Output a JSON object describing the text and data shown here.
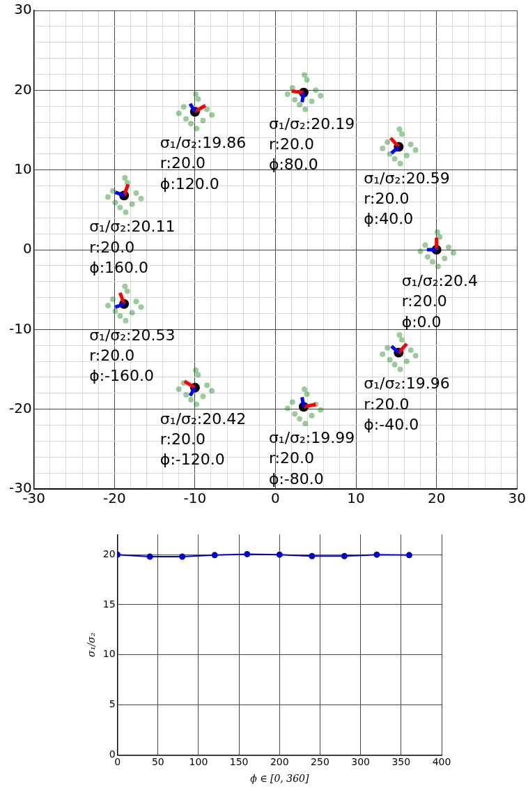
{
  "chart_data": [
    {
      "type": "scatter",
      "xlim": [
        -30,
        30
      ],
      "ylim": [
        -30,
        30
      ],
      "xticks": [
        -30,
        {
          "value": -28,
          "label": null
        },
        {
          "value": -26,
          "label": null
        },
        {
          "value": -24,
          "label": null
        },
        {
          "value": -22,
          "label": null
        },
        -20,
        {
          "value": -18,
          "label": null
        },
        {
          "value": -16,
          "label": null
        },
        {
          "value": -14,
          "label": null
        },
        {
          "value": -12,
          "label": null
        },
        -10,
        {
          "value": -8,
          "label": null
        },
        {
          "value": -6,
          "label": null
        },
        {
          "value": -4,
          "label": null
        },
        {
          "value": -2,
          "label": null
        },
        0,
        {
          "value": 2,
          "label": null
        },
        {
          "value": 4,
          "label": null
        },
        {
          "value": 6,
          "label": null
        },
        {
          "value": 8,
          "label": null
        },
        10,
        {
          "value": 12,
          "label": null
        },
        {
          "value": 14,
          "label": null
        },
        {
          "value": 16,
          "label": null
        },
        {
          "value": 18,
          "label": null
        },
        20,
        {
          "value": 22,
          "label": null
        },
        {
          "value": 24,
          "label": null
        },
        {
          "value": 26,
          "label": null
        },
        {
          "value": 28,
          "label": null
        },
        30
      ],
      "yticks": [
        -30,
        {
          "value": -28,
          "label": null
        },
        {
          "value": -26,
          "label": null
        },
        {
          "value": -24,
          "label": null
        },
        {
          "value": -22,
          "label": null
        },
        -20,
        {
          "value": -18,
          "label": null
        },
        {
          "value": -16,
          "label": null
        },
        {
          "value": -14,
          "label": null
        },
        {
          "value": -12,
          "label": null
        },
        -10,
        {
          "value": -8,
          "label": null
        },
        {
          "value": -6,
          "label": null
        },
        {
          "value": -4,
          "label": null
        },
        {
          "value": -2,
          "label": null
        },
        0,
        {
          "value": 2,
          "label": null
        },
        {
          "value": 4,
          "label": null
        },
        {
          "value": 6,
          "label": null
        },
        {
          "value": 8,
          "label": null
        },
        10,
        {
          "value": 12,
          "label": null
        },
        {
          "value": 14,
          "label": null
        },
        {
          "value": 16,
          "label": null
        },
        {
          "value": 18,
          "label": null
        },
        20,
        {
          "value": 22,
          "label": null
        },
        {
          "value": 24,
          "label": null
        },
        {
          "value": 26,
          "label": null
        },
        {
          "value": 28,
          "label": null
        },
        30
      ],
      "grid": true,
      "marker": "circle",
      "series": [
        {
          "type": "scatter",
          "color": "#008000",
          "x": [
            21.5,
            18.6,
            20.4,
            19.5,
            21.0,
            18.9,
            22.1,
            18.0,
            20.2,
            20.1,
            16.8,
            13.9,
            15.7,
            14.8,
            16.3,
            14.2,
            17.4,
            13.3,
            15.5,
            15.4,
            5.0,
            2.1,
            3.9,
            3.0,
            4.5,
            2.4,
            5.6,
            1.5,
            3.7,
            3.6,
            -8.5,
            -11.4,
            -9.6,
            -10.5,
            -9.0,
            -11.1,
            -7.9,
            -12.0,
            -9.8,
            -9.9,
            -17.3,
            -20.2,
            -18.4,
            -19.3,
            -17.8,
            -19.9,
            -16.7,
            -20.8,
            -18.6,
            -18.7,
            -17.3,
            -20.2,
            -18.4,
            -19.3,
            -17.8,
            -19.9,
            -16.7,
            -20.8,
            -18.6,
            -18.7,
            -8.5,
            -11.4,
            -9.6,
            -10.5,
            -9.0,
            -11.1,
            -7.9,
            -12.0,
            -9.8,
            -9.9,
            5.0,
            2.1,
            3.9,
            3.0,
            4.5,
            2.4,
            5.6,
            1.5,
            3.7,
            3.6,
            16.8,
            13.9,
            15.7,
            14.8,
            16.3,
            14.2,
            17.4,
            13.3,
            15.5,
            15.4
          ],
          "values": [
            0.3,
            0.6,
            1.6,
            -1.5,
            -1.1,
            -0.9,
            -0.4,
            -0.2,
            -2.1,
            2.2,
            13.2,
            13.5,
            14.5,
            11.4,
            11.8,
            12.0,
            12.5,
            12.7,
            10.8,
            15.1,
            20.0,
            20.3,
            21.3,
            18.2,
            18.6,
            18.8,
            19.3,
            19.5,
            17.6,
            21.9,
            17.6,
            17.9,
            18.9,
            15.8,
            16.2,
            16.4,
            16.9,
            17.1,
            15.2,
            19.5,
            7.1,
            7.4,
            8.4,
            5.3,
            5.7,
            5.9,
            6.4,
            6.6,
            4.7,
            9.0,
            -6.5,
            -6.2,
            -5.2,
            -8.3,
            -7.9,
            -7.7,
            -7.2,
            -7.0,
            -8.9,
            -4.6,
            -17.0,
            -16.7,
            -15.7,
            -18.8,
            -18.4,
            -18.2,
            -17.7,
            -17.5,
            -19.4,
            -15.1,
            -19.4,
            -19.1,
            -18.1,
            -21.2,
            -20.8,
            -20.6,
            -20.1,
            -19.9,
            -21.8,
            -17.5,
            -12.6,
            -12.3,
            -11.3,
            -14.4,
            -14.0,
            -13.8,
            -13.3,
            -13.1,
            -15.0,
            -10.7
          ]
        },
        {
          "type": "scatter",
          "color": "#000000",
          "x": [
            20,
            15.3,
            3.5,
            -10,
            -18.8,
            -18.8,
            -10,
            3.5,
            15.3
          ],
          "values": [
            0,
            12.9,
            19.7,
            17.3,
            6.8,
            -6.8,
            -17.3,
            -19.7,
            -12.9
          ]
        },
        {
          "type": "line",
          "marker": "none",
          "color": "#ff0000",
          "x": [
            20,
            20
          ],
          "values": [
            0,
            1.5
          ]
        },
        {
          "type": "line",
          "marker": "none",
          "color": "#ff0000",
          "x": [
            15.3,
            14.3
          ],
          "values": [
            12.9,
            14.0
          ]
        },
        {
          "type": "line",
          "marker": "none",
          "color": "#ff0000",
          "x": [
            3.5,
            2.0
          ],
          "values": [
            19.7,
            19.9
          ]
        },
        {
          "type": "line",
          "marker": "none",
          "color": "#ff0000",
          "x": [
            -10,
            -8.7
          ],
          "values": [
            17.3,
            18.1
          ]
        },
        {
          "type": "line",
          "marker": "none",
          "color": "#ff0000",
          "x": [
            -18.8,
            -18.3
          ],
          "values": [
            6.8,
            8.2
          ]
        },
        {
          "type": "line",
          "marker": "none",
          "color": "#ff0000",
          "x": [
            -18.8,
            -19.3
          ],
          "values": [
            -6.8,
            -5.4
          ]
        },
        {
          "type": "line",
          "marker": "none",
          "color": "#ff0000",
          "x": [
            -10,
            -11.3
          ],
          "values": [
            -17.3,
            -16.5
          ]
        },
        {
          "type": "line",
          "marker": "none",
          "color": "#ff0000",
          "x": [
            3.5,
            5.0
          ],
          "values": [
            -19.7,
            -19.4
          ]
        },
        {
          "type": "line",
          "marker": "none",
          "color": "#ff0000",
          "x": [
            15.3,
            16.3
          ],
          "values": [
            -12.9,
            -11.8
          ]
        },
        {
          "type": "line",
          "marker": "none",
          "color": "#0000ff",
          "x": [
            20,
            18.8
          ],
          "values": [
            0,
            0
          ]
        },
        {
          "type": "line",
          "marker": "none",
          "color": "#0000ff",
          "x": [
            15.3,
            14.4
          ],
          "values": [
            12.9,
            12.1
          ]
        },
        {
          "type": "line",
          "marker": "none",
          "color": "#0000ff",
          "x": [
            3.5,
            3.3
          ],
          "values": [
            19.7,
            18.5
          ]
        },
        {
          "type": "line",
          "marker": "none",
          "color": "#0000ff",
          "x": [
            -10,
            -10.6
          ],
          "values": [
            17.3,
            18.3
          ]
        },
        {
          "type": "line",
          "marker": "none",
          "color": "#0000ff",
          "x": [
            -18.8,
            -19.9
          ],
          "values": [
            6.8,
            7.2
          ]
        },
        {
          "type": "line",
          "marker": "none",
          "color": "#0000ff",
          "x": [
            -18.8,
            -19.9
          ],
          "values": [
            -6.8,
            -7.2
          ]
        },
        {
          "type": "line",
          "marker": "none",
          "color": "#0000ff",
          "x": [
            -10,
            -10.6
          ],
          "values": [
            -17.3,
            -18.3
          ]
        },
        {
          "type": "line",
          "marker": "none",
          "color": "#0000ff",
          "x": [
            3.5,
            3.3
          ],
          "values": [
            -19.7,
            -18.5
          ]
        },
        {
          "type": "line",
          "marker": "none",
          "color": "#0000ff",
          "x": [
            15.3,
            14.4
          ],
          "values": [
            -12.9,
            -12.1
          ]
        }
      ],
      "annotations": [
        {
          "text": "σ₁/σ₂:20.4\nr:20.0\nϕ:0.0",
          "x": 20,
          "y": 0
        },
        {
          "text": "σ₁/σ₂:20.59\nr:20.0\nϕ:40.0",
          "x": 15.3,
          "y": 12.9
        },
        {
          "text": "σ₁/σ₂:20.19\nr:20.0\nϕ:80.0",
          "x": 3.5,
          "y": 19.7
        },
        {
          "text": "σ₁/σ₂:19.86\nr:20.0\nϕ:120.0",
          "x": -10,
          "y": 17.3
        },
        {
          "text": "σ₁/σ₂:20.11\nr:20.0\nϕ:160.0",
          "x": -18.8,
          "y": 6.8
        },
        {
          "text": "σ₁/σ₂:20.53\nr:20.0\nϕ:-160.0",
          "x": -18.8,
          "y": -6.8
        },
        {
          "text": "σ₁/σ₂:20.42\nr:20.0\nϕ:-120.0",
          "x": -10,
          "y": -17.3
        },
        {
          "text": "σ₁/σ₂:19.99\nr:20.0\nϕ:-80.0",
          "x": 3.5,
          "y": -19.7
        },
        {
          "text": "σ₁/σ₂:19.96\nr:20.0\nϕ:-40.0",
          "x": 15.3,
          "y": -12.9
        }
      ]
    },
    {
      "type": "line",
      "xlabel": "ϕ ∈ [0, 360]",
      "ylabel": "σ₁/σ₂",
      "xlim": [
        0,
        400
      ],
      "ylim": [
        0,
        22
      ],
      "xticks": [
        0,
        50,
        100,
        150,
        200,
        250,
        300,
        350,
        400
      ],
      "yticks": [
        0,
        5,
        10,
        15,
        20
      ],
      "grid": true,
      "marker": "circle",
      "x": [
        0,
        40,
        80,
        120,
        160,
        200,
        240,
        280,
        320,
        360
      ],
      "series": [
        {
          "color": "#0000cc",
          "values": [
            20.0,
            19.8,
            19.8,
            19.95,
            20.05,
            20.0,
            19.85,
            19.85,
            20.0,
            19.95
          ]
        }
      ]
    }
  ]
}
